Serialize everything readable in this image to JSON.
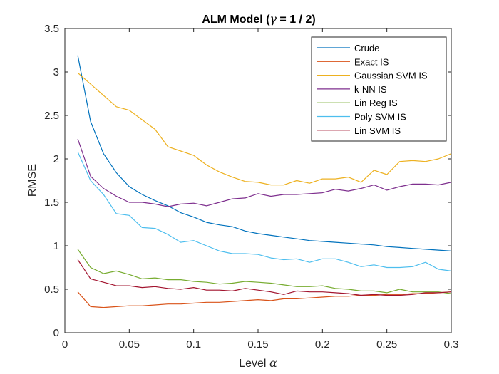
{
  "chart_data": {
    "type": "line",
    "title_parts": [
      "ALM Model (",
      "γ",
      " = 1 / 2)"
    ],
    "xlabel_parts": [
      "Level ",
      "α"
    ],
    "ylabel": "RMSE",
    "xlim": [
      0,
      0.3
    ],
    "ylim": [
      0,
      3.5
    ],
    "xticks": [
      0,
      0.05,
      0.1,
      0.15,
      0.2,
      0.25,
      0.3
    ],
    "xtick_labels": [
      "0",
      "0.05",
      "0.1",
      "0.15",
      "0.2",
      "0.25",
      "0.3"
    ],
    "yticks": [
      0,
      0.5,
      1,
      1.5,
      2,
      2.5,
      3,
      3.5
    ],
    "ytick_labels": [
      "0",
      "0.5",
      "1",
      "1.5",
      "2",
      "2.5",
      "3",
      "3.5"
    ],
    "legend_position": "top-right",
    "x": [
      0.01,
      0.02,
      0.03,
      0.04,
      0.05,
      0.06,
      0.07,
      0.08,
      0.09,
      0.1,
      0.11,
      0.12,
      0.13,
      0.14,
      0.15,
      0.16,
      0.17,
      0.18,
      0.19,
      0.2,
      0.21,
      0.22,
      0.23,
      0.24,
      0.25,
      0.26,
      0.27,
      0.28,
      0.29,
      0.3
    ],
    "series": [
      {
        "name": "Crude",
        "color": "#0072BD",
        "values": [
          3.19,
          2.43,
          2.06,
          1.84,
          1.68,
          1.59,
          1.52,
          1.46,
          1.38,
          1.33,
          1.27,
          1.24,
          1.22,
          1.17,
          1.14,
          1.12,
          1.1,
          1.08,
          1.06,
          1.05,
          1.04,
          1.03,
          1.02,
          1.01,
          0.99,
          0.98,
          0.97,
          0.96,
          0.95,
          0.94
        ]
      },
      {
        "name": "Exact IS",
        "color": "#D95319",
        "values": [
          0.47,
          0.3,
          0.29,
          0.3,
          0.31,
          0.31,
          0.32,
          0.33,
          0.33,
          0.34,
          0.35,
          0.35,
          0.36,
          0.37,
          0.38,
          0.37,
          0.39,
          0.39,
          0.4,
          0.41,
          0.42,
          0.42,
          0.43,
          0.43,
          0.44,
          0.44,
          0.45,
          0.45,
          0.46,
          0.47
        ]
      },
      {
        "name": "Gaussian SVM IS",
        "color": "#EDB120",
        "values": [
          2.99,
          2.86,
          2.73,
          2.6,
          2.56,
          2.45,
          2.34,
          2.14,
          2.09,
          2.04,
          1.93,
          1.85,
          1.79,
          1.74,
          1.73,
          1.7,
          1.7,
          1.75,
          1.72,
          1.77,
          1.77,
          1.79,
          1.73,
          1.87,
          1.82,
          1.97,
          1.98,
          1.97,
          2.0,
          2.06
        ]
      },
      {
        "name": "k-NN IS",
        "color": "#7E2F8E",
        "values": [
          2.23,
          1.8,
          1.66,
          1.57,
          1.5,
          1.5,
          1.48,
          1.45,
          1.48,
          1.49,
          1.46,
          1.5,
          1.54,
          1.55,
          1.6,
          1.57,
          1.59,
          1.59,
          1.6,
          1.61,
          1.65,
          1.63,
          1.66,
          1.7,
          1.64,
          1.68,
          1.71,
          1.71,
          1.7,
          1.73
        ]
      },
      {
        "name": "Lin Reg IS",
        "color": "#77AC30",
        "values": [
          0.96,
          0.75,
          0.68,
          0.71,
          0.67,
          0.62,
          0.63,
          0.61,
          0.61,
          0.59,
          0.58,
          0.56,
          0.57,
          0.59,
          0.58,
          0.57,
          0.55,
          0.53,
          0.53,
          0.54,
          0.51,
          0.5,
          0.48,
          0.48,
          0.46,
          0.5,
          0.47,
          0.47,
          0.47,
          0.45
        ]
      },
      {
        "name": "Poly SVM IS",
        "color": "#4DBEEE",
        "values": [
          2.08,
          1.75,
          1.59,
          1.37,
          1.35,
          1.21,
          1.2,
          1.13,
          1.04,
          1.06,
          1.0,
          0.94,
          0.91,
          0.91,
          0.9,
          0.86,
          0.84,
          0.85,
          0.81,
          0.85,
          0.85,
          0.81,
          0.76,
          0.78,
          0.75,
          0.75,
          0.76,
          0.81,
          0.73,
          0.71
        ]
      },
      {
        "name": "Lin SVM IS",
        "color": "#A2142F",
        "values": [
          0.84,
          0.62,
          0.58,
          0.54,
          0.54,
          0.52,
          0.53,
          0.51,
          0.5,
          0.52,
          0.49,
          0.49,
          0.48,
          0.51,
          0.49,
          0.47,
          0.44,
          0.48,
          0.47,
          0.47,
          0.46,
          0.45,
          0.43,
          0.44,
          0.43,
          0.43,
          0.44,
          0.46,
          0.46,
          0.47
        ]
      }
    ]
  }
}
